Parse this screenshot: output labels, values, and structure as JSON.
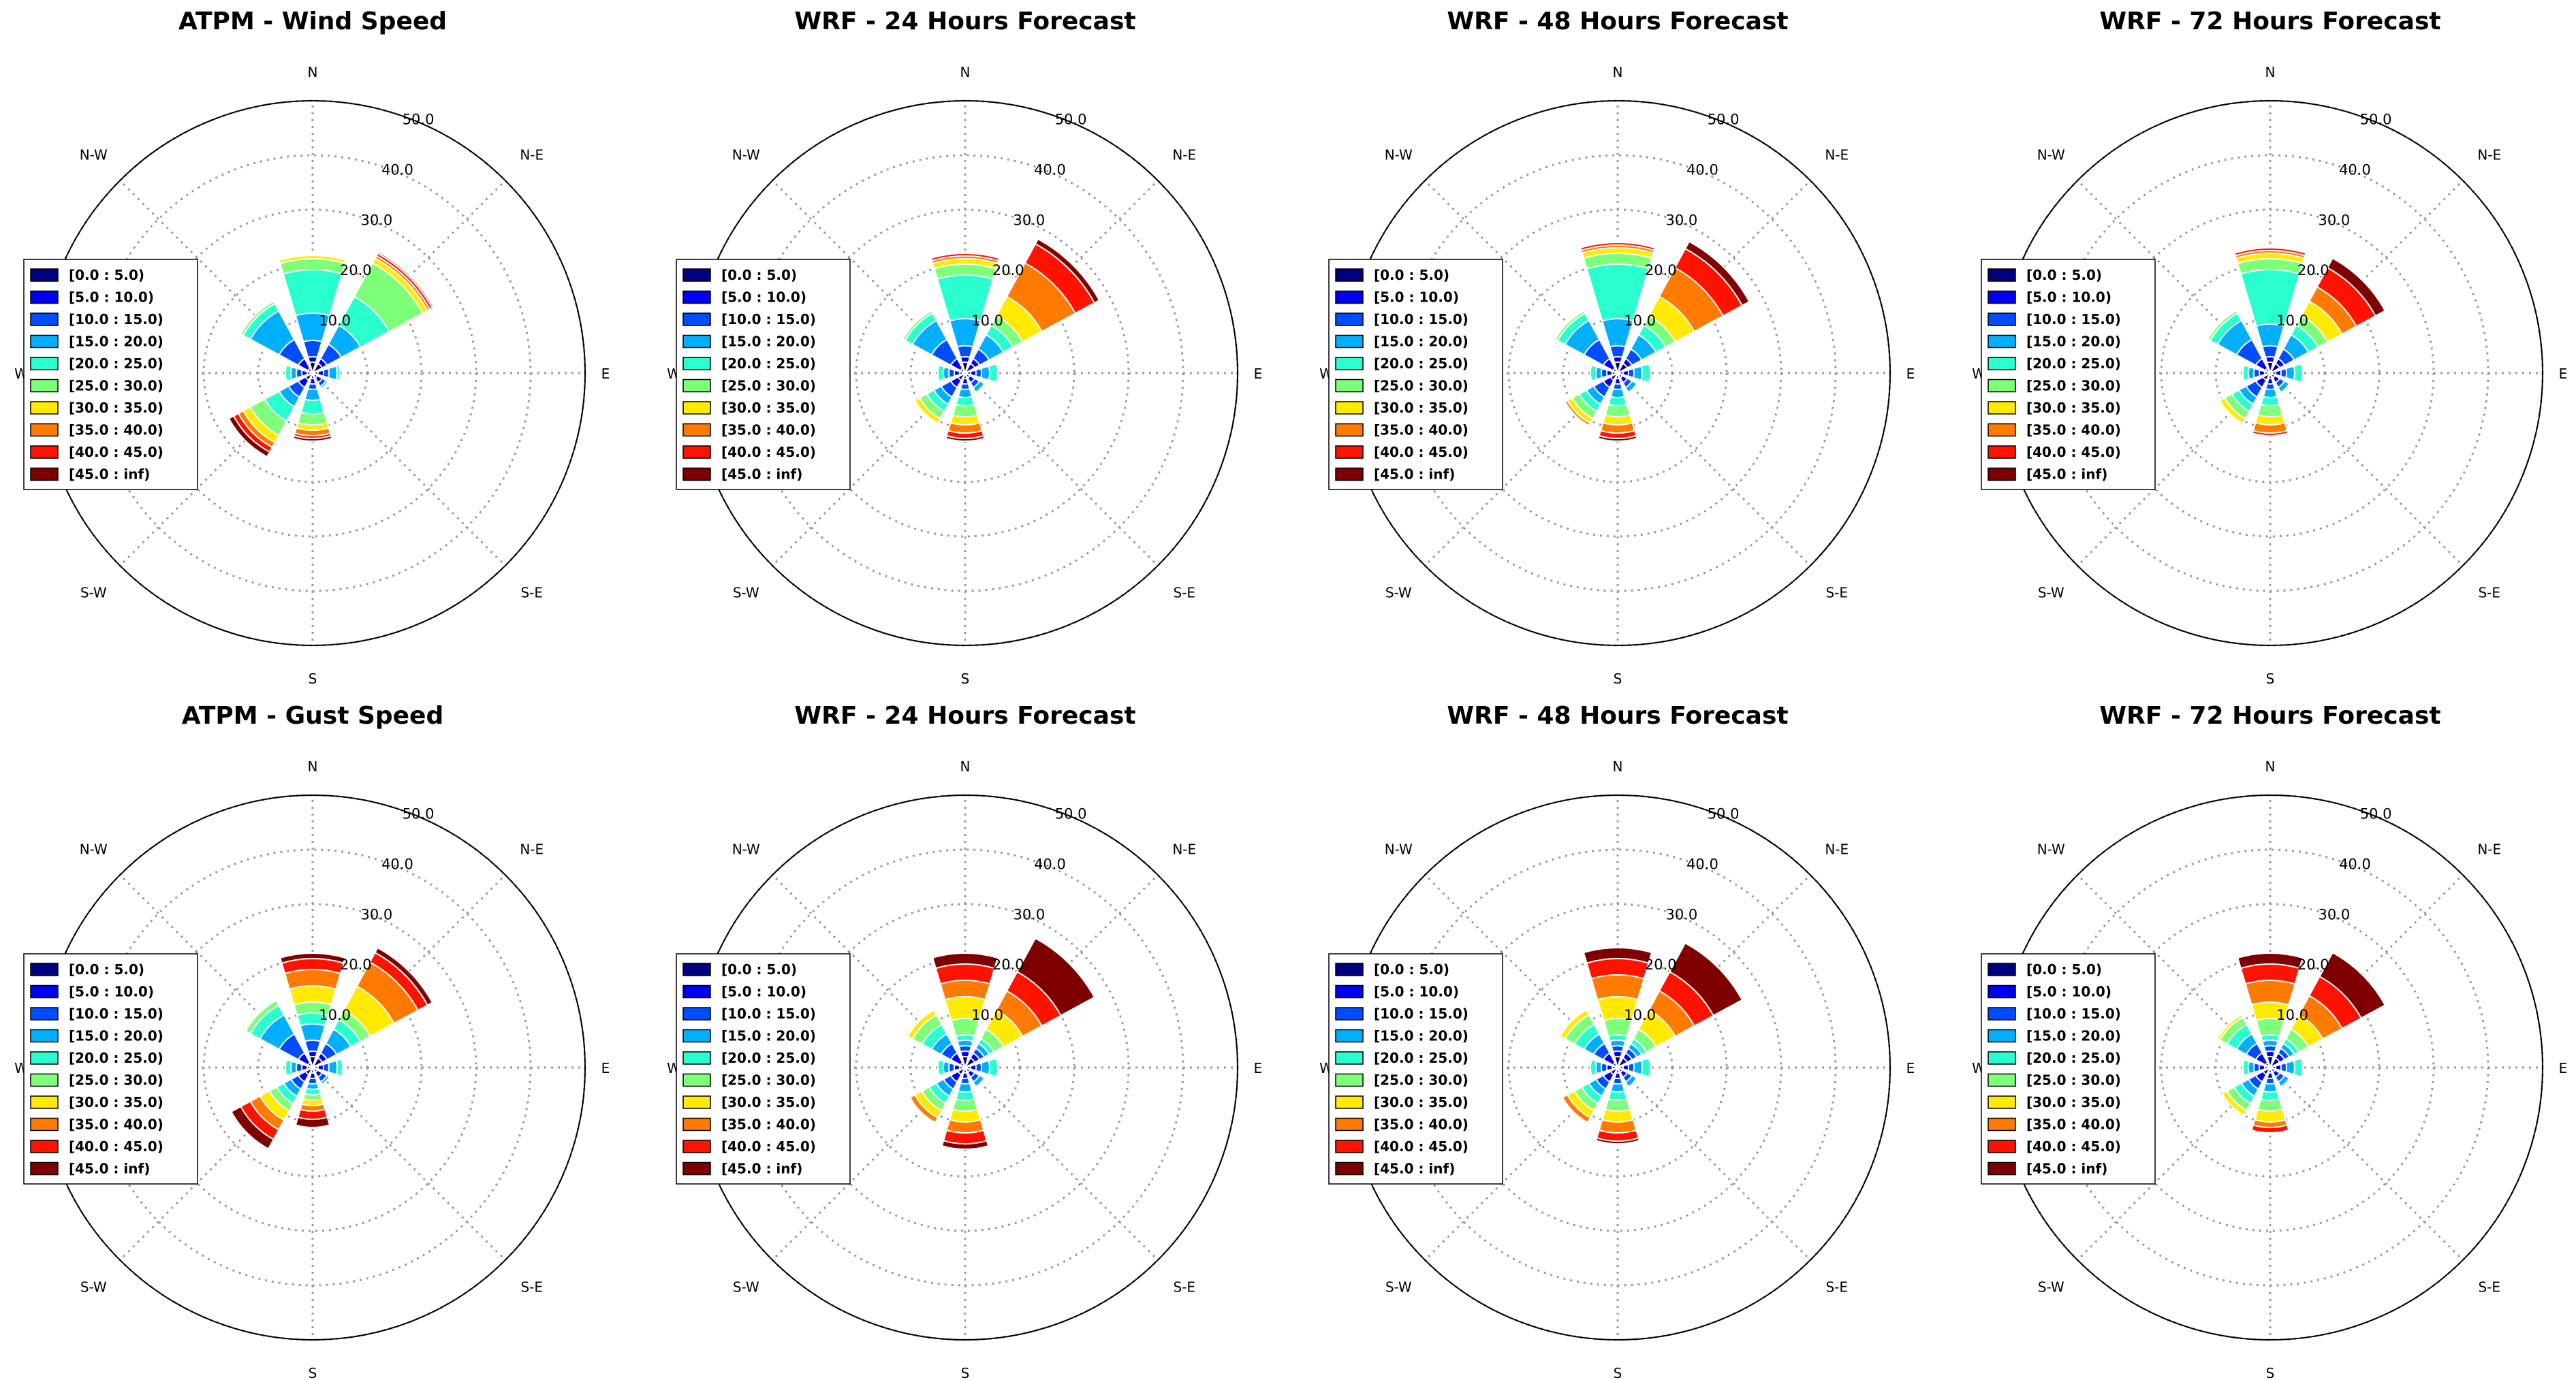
{
  "figure": {
    "background": "#ffffff"
  },
  "legend": {
    "bins": [
      "[0.0 : 5.0)",
      "[5.0 : 10.0)",
      "[10.0 : 15.0)",
      "[15.0 : 20.0)",
      "[20.0 : 25.0)",
      "[25.0 : 30.0)",
      "[30.0 : 35.0)",
      "[35.0 : 40.0)",
      "[40.0 : 45.0)",
      "[45.0 : inf)"
    ],
    "colors": [
      "#00007f",
      "#0000f1",
      "#004cff",
      "#00b0ff",
      "#29ffce",
      "#7dff7a",
      "#ffea00",
      "#ff7a00",
      "#ff1300",
      "#7f0000"
    ]
  },
  "chart_data": [
    {
      "type": "windrose",
      "title": "ATPM - Wind Speed",
      "directions": [
        "N",
        "N-E",
        "E",
        "S-E",
        "S",
        "S-W",
        "W",
        "N-W"
      ],
      "rings": [
        "10.0",
        "20.0",
        "30.0",
        "40.0",
        "50.0"
      ],
      "rmax": 50,
      "sectors": [
        {
          "dir": "N",
          "cum": [
            2,
            3,
            6,
            11,
            19,
            21,
            21.6,
            21.8,
            22,
            22.2
          ]
        },
        {
          "dir": "N-E",
          "cum": [
            2,
            3,
            6,
            10,
            16,
            23,
            24,
            24.5,
            25,
            25.3
          ]
        },
        {
          "dir": "E",
          "cum": [
            1,
            2,
            3,
            4.5,
            5
          ]
        },
        {
          "dir": "S-E",
          "cum": [
            1,
            2,
            2.8,
            3.2
          ]
        },
        {
          "dir": "S",
          "cum": [
            1,
            2,
            3,
            5,
            7.5,
            9.5,
            10.5,
            11.5,
            12,
            12.5
          ]
        },
        {
          "dir": "S-W",
          "cum": [
            1.5,
            3,
            5,
            7,
            10,
            13,
            14.5,
            15.5,
            16.5,
            17.5
          ]
        },
        {
          "dir": "W",
          "cum": [
            1,
            2,
            3,
            4,
            5
          ]
        },
        {
          "dir": "N-W",
          "cum": [
            1,
            3,
            7,
            13,
            14.5,
            15
          ]
        }
      ]
    },
    {
      "type": "windrose",
      "title": "WRF - 24 Hours Forecast",
      "directions": [
        "N",
        "N-E",
        "E",
        "S-E",
        "S",
        "S-W",
        "W",
        "N-W"
      ],
      "rings": [
        "10.0",
        "20.0",
        "30.0",
        "40.0",
        "50.0"
      ],
      "rmax": 50,
      "sectors": [
        {
          "dir": "N",
          "cum": [
            2,
            3,
            5,
            10,
            18,
            20,
            21,
            21.5,
            22
          ]
        },
        {
          "dir": "N-E",
          "cum": [
            2,
            3,
            5,
            8,
            10,
            12,
            16,
            23,
            27,
            28
          ]
        },
        {
          "dir": "E",
          "cum": [
            1,
            2,
            3,
            4.5,
            6
          ]
        },
        {
          "dir": "S-E",
          "cum": [
            1,
            2,
            3,
            4
          ]
        },
        {
          "dir": "S",
          "cum": [
            1,
            2,
            3,
            4.5,
            6,
            8,
            9.5,
            11,
            12,
            12.5
          ]
        },
        {
          "dir": "S-W",
          "cum": [
            1.5,
            3,
            5,
            6.5,
            8,
            9.5,
            10.5
          ]
        },
        {
          "dir": "W",
          "cum": [
            1,
            2,
            3,
            4,
            5
          ]
        },
        {
          "dir": "N-W",
          "cum": [
            1,
            3,
            7,
            11,
            12.5,
            13
          ]
        }
      ]
    },
    {
      "type": "windrose",
      "title": "WRF - 48 Hours Forecast",
      "directions": [
        "N",
        "N-E",
        "E",
        "S-E",
        "S",
        "S-W",
        "W",
        "N-W"
      ],
      "rings": [
        "10.0",
        "20.0",
        "30.0",
        "40.0",
        "50.0"
      ],
      "rmax": 50,
      "sectors": [
        {
          "dir": "N",
          "cum": [
            2,
            3,
            5,
            10,
            20,
            22,
            23,
            23.5,
            24
          ]
        },
        {
          "dir": "N-E",
          "cum": [
            2,
            3,
            5,
            8,
            10,
            12,
            16,
            22,
            26,
            27.5
          ]
        },
        {
          "dir": "E",
          "cum": [
            1,
            2,
            3,
            4.5,
            6
          ]
        },
        {
          "dir": "S-E",
          "cum": [
            1,
            2,
            3,
            4
          ]
        },
        {
          "dir": "S",
          "cum": [
            1,
            2,
            3,
            4.5,
            6,
            8,
            9.5,
            11,
            12,
            12.5
          ]
        },
        {
          "dir": "S-W",
          "cum": [
            1.5,
            3,
            5,
            6.5,
            8,
            9.5,
            10.5,
            11
          ]
        },
        {
          "dir": "W",
          "cum": [
            1,
            2,
            3,
            4,
            5
          ]
        },
        {
          "dir": "N-W",
          "cum": [
            1,
            3,
            7,
            11,
            12.5,
            13
          ]
        }
      ]
    },
    {
      "type": "windrose",
      "title": "WRF - 72 Hours Forecast",
      "directions": [
        "N",
        "N-E",
        "E",
        "S-E",
        "S",
        "S-W",
        "W",
        "N-W"
      ],
      "rings": [
        "10.0",
        "20.0",
        "30.0",
        "40.0",
        "50.0"
      ],
      "rmax": 50,
      "sectors": [
        {
          "dir": "N",
          "cum": [
            2,
            3,
            5,
            9,
            19,
            21,
            22,
            22.5,
            23
          ]
        },
        {
          "dir": "N-E",
          "cum": [
            2,
            3,
            5,
            8,
            10,
            12,
            15,
            18,
            22,
            24
          ]
        },
        {
          "dir": "E",
          "cum": [
            1,
            2,
            3,
            4.5,
            6
          ]
        },
        {
          "dir": "S-E",
          "cum": [
            1,
            2,
            3,
            4
          ]
        },
        {
          "dir": "S",
          "cum": [
            1,
            2,
            3,
            4.5,
            6,
            8,
            9.5,
            11,
            11.5
          ]
        },
        {
          "dir": "S-W",
          "cum": [
            1.5,
            3,
            5,
            6.5,
            8,
            9.5,
            10.5
          ]
        },
        {
          "dir": "W",
          "cum": [
            1,
            2,
            3,
            4,
            5
          ]
        },
        {
          "dir": "N-W",
          "cum": [
            1,
            3,
            7,
            11,
            12.5,
            13
          ]
        }
      ]
    },
    {
      "type": "windrose",
      "title": "ATPM - Gust Speed",
      "directions": [
        "N",
        "N-E",
        "E",
        "S-E",
        "S",
        "S-W",
        "W",
        "N-W"
      ],
      "rings": [
        "10.0",
        "20.0",
        "30.0",
        "40.0",
        "50.0"
      ],
      "rmax": 50,
      "sectors": [
        {
          "dir": "N",
          "cum": [
            2,
            3,
            5,
            8,
            10,
            12,
            15,
            18,
            20,
            21
          ]
        },
        {
          "dir": "N-E",
          "cum": [
            2,
            3,
            5,
            8,
            10,
            12,
            17,
            22,
            24,
            25
          ]
        },
        {
          "dir": "E",
          "cum": [
            1,
            2,
            3,
            4.5,
            5.5
          ]
        },
        {
          "dir": "S-E",
          "cum": [
            1,
            2,
            3,
            3.5
          ]
        },
        {
          "dir": "S",
          "cum": [
            1,
            2,
            3,
            4,
            5,
            6,
            7,
            8,
            9.5,
            11
          ]
        },
        {
          "dir": "S-W",
          "cum": [
            1.5,
            3,
            4.5,
            6,
            7.5,
            9,
            11,
            13,
            15,
            17
          ]
        },
        {
          "dir": "W",
          "cum": [
            1,
            2,
            3,
            4,
            5
          ]
        },
        {
          "dir": "N-W",
          "cum": [
            1,
            3,
            7,
            11,
            13,
            14
          ]
        }
      ]
    },
    {
      "type": "windrose",
      "title": "WRF - 24 Hours Forecast",
      "directions": [
        "N",
        "N-E",
        "E",
        "S-E",
        "S",
        "S-W",
        "W",
        "N-W"
      ],
      "rings": [
        "10.0",
        "20.0",
        "30.0",
        "40.0",
        "50.0"
      ],
      "rmax": 50,
      "sectors": [
        {
          "dir": "N",
          "cum": [
            2,
            3,
            4,
            5,
            6,
            9,
            13,
            16,
            19,
            21
          ]
        },
        {
          "dir": "N-E",
          "cum": [
            2,
            3,
            4,
            5,
            6,
            8,
            12,
            16,
            20,
            27
          ]
        },
        {
          "dir": "E",
          "cum": [
            1,
            2,
            3,
            4.5,
            6
          ]
        },
        {
          "dir": "S-E",
          "cum": [
            1,
            2,
            3,
            4
          ]
        },
        {
          "dir": "S",
          "cum": [
            1,
            2,
            3,
            4.5,
            6,
            8,
            10,
            12,
            14,
            15
          ]
        },
        {
          "dir": "S-W",
          "cum": [
            1.5,
            3,
            4.5,
            6,
            7.5,
            9,
            10.5,
            11.5
          ]
        },
        {
          "dir": "W",
          "cum": [
            1,
            2,
            3,
            4,
            5
          ]
        },
        {
          "dir": "N-W",
          "cum": [
            1,
            3,
            5,
            7,
            9,
            11,
            12
          ]
        }
      ]
    },
    {
      "type": "windrose",
      "title": "WRF - 48 Hours Forecast",
      "directions": [
        "N",
        "N-E",
        "E",
        "S-E",
        "S",
        "S-W",
        "W",
        "N-W"
      ],
      "rings": [
        "10.0",
        "20.0",
        "30.0",
        "40.0",
        "50.0"
      ],
      "rmax": 50,
      "sectors": [
        {
          "dir": "N",
          "cum": [
            2,
            3,
            4,
            5,
            6,
            9,
            13,
            17,
            20,
            22
          ]
        },
        {
          "dir": "N-E",
          "cum": [
            2,
            3,
            4,
            5,
            6,
            8,
            12,
            16,
            20,
            26
          ]
        },
        {
          "dir": "E",
          "cum": [
            1,
            2,
            3,
            4.5,
            6
          ]
        },
        {
          "dir": "S-E",
          "cum": [
            1,
            2,
            3,
            4
          ]
        },
        {
          "dir": "S",
          "cum": [
            1,
            2,
            3,
            4.5,
            6,
            8,
            10,
            12,
            13.5,
            14
          ]
        },
        {
          "dir": "S-W",
          "cum": [
            1.5,
            3,
            4.5,
            6,
            7.5,
            9,
            10.5,
            11.5
          ]
        },
        {
          "dir": "W",
          "cum": [
            1,
            2,
            3,
            4,
            5
          ]
        },
        {
          "dir": "N-W",
          "cum": [
            1,
            3,
            5,
            7,
            9,
            11,
            12
          ]
        }
      ]
    },
    {
      "type": "windrose",
      "title": "WRF - 72 Hours Forecast",
      "directions": [
        "N",
        "N-E",
        "E",
        "S-E",
        "S",
        "S-W",
        "W",
        "N-W"
      ],
      "rings": [
        "10.0",
        "20.0",
        "30.0",
        "40.0",
        "50.0"
      ],
      "rmax": 50,
      "sectors": [
        {
          "dir": "N",
          "cum": [
            2,
            3,
            4,
            5,
            6,
            9,
            12,
            16,
            19,
            21
          ]
        },
        {
          "dir": "N-E",
          "cum": [
            2,
            3,
            4,
            5,
            6,
            8,
            11,
            15,
            19,
            24
          ]
        },
        {
          "dir": "E",
          "cum": [
            1,
            2,
            3,
            4.5,
            6
          ]
        },
        {
          "dir": "S-E",
          "cum": [
            1,
            2,
            3,
            4
          ]
        },
        {
          "dir": "S",
          "cum": [
            1,
            2,
            3,
            4.5,
            6,
            8,
            10,
            11,
            12
          ]
        },
        {
          "dir": "S-W",
          "cum": [
            1.5,
            3,
            4.5,
            6,
            7.5,
            9,
            10
          ]
        },
        {
          "dir": "W",
          "cum": [
            1,
            2,
            3,
            4,
            5
          ]
        },
        {
          "dir": "N-W",
          "cum": [
            1,
            3,
            5,
            7,
            9,
            10.5,
            11
          ]
        }
      ]
    }
  ]
}
